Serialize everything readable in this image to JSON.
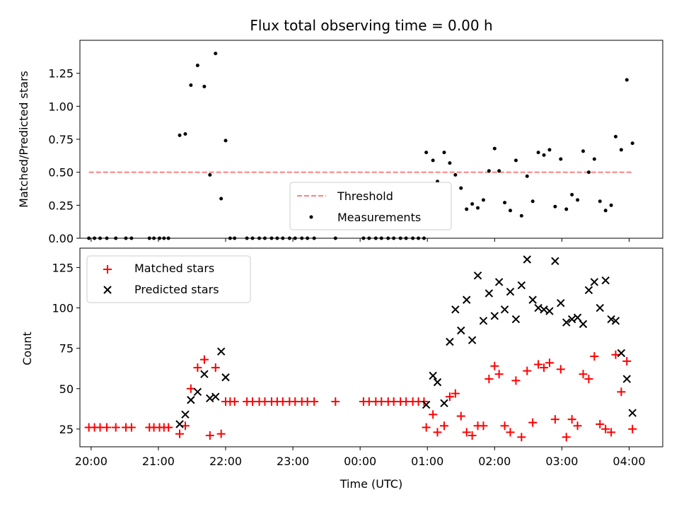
{
  "chart_data": [
    {
      "type": "scatter",
      "title": "Flux total observing time = 0.00 h",
      "xlabel": "",
      "ylabel": "Matched/Predicted stars",
      "xlim": [
        "19:50",
        "04:30"
      ],
      "ylim": [
        0,
        1.5
      ],
      "yticks": [
        "0.00",
        "0.25",
        "0.50",
        "0.75",
        "1.00",
        "1.25"
      ],
      "grid": false,
      "legend_position": "lower center",
      "threshold": {
        "name": "Threshold",
        "value": 0.5,
        "x_start": "19:58",
        "x_end": "04:03",
        "color": "#ff7f7f"
      },
      "series": [
        {
          "name": "Measurements",
          "color": "#000000",
          "points": [
            [
              "19:58",
              0
            ],
            [
              "20:03",
              0
            ],
            [
              "20:08",
              0
            ],
            [
              "20:14",
              0
            ],
            [
              "20:22",
              0
            ],
            [
              "20:31",
              0
            ],
            [
              "20:36",
              0
            ],
            [
              "20:52",
              0
            ],
            [
              "20:56",
              0
            ],
            [
              "21:01",
              0
            ],
            [
              "21:05",
              0
            ],
            [
              "21:09",
              0
            ],
            [
              "21:19",
              0.78
            ],
            [
              "21:24",
              0.79
            ],
            [
              "21:29",
              1.16
            ],
            [
              "21:35",
              1.31
            ],
            [
              "21:41",
              1.15
            ],
            [
              "21:46",
              0.48
            ],
            [
              "21:51",
              1.4
            ],
            [
              "21:56",
              0.3
            ],
            [
              "22:00",
              0.74
            ],
            [
              "22:04",
              0
            ],
            [
              "22:08",
              0
            ],
            [
              "22:19",
              0
            ],
            [
              "22:24",
              0
            ],
            [
              "22:30",
              0
            ],
            [
              "22:35",
              0
            ],
            [
              "22:41",
              0
            ],
            [
              "22:46",
              0
            ],
            [
              "22:51",
              0
            ],
            [
              "22:57",
              0
            ],
            [
              "23:02",
              0
            ],
            [
              "23:08",
              0
            ],
            [
              "23:13",
              0
            ],
            [
              "23:19",
              0
            ],
            [
              "23:38",
              0
            ],
            [
              "00:03",
              0
            ],
            [
              "00:08",
              0
            ],
            [
              "00:14",
              0
            ],
            [
              "00:19",
              0
            ],
            [
              "00:25",
              0
            ],
            [
              "00:30",
              0
            ],
            [
              "00:36",
              0
            ],
            [
              "00:41",
              0
            ],
            [
              "00:47",
              0
            ],
            [
              "00:52",
              0
            ],
            [
              "00:57",
              0
            ],
            [
              "00:59",
              0.65
            ],
            [
              "01:05",
              0.59
            ],
            [
              "01:09",
              0.43
            ],
            [
              "01:15",
              0.65
            ],
            [
              "01:20",
              0.57
            ],
            [
              "01:25",
              0.48
            ],
            [
              "01:30",
              0.38
            ],
            [
              "01:35",
              0.22
            ],
            [
              "01:40",
              0.26
            ],
            [
              "01:45",
              0.23
            ],
            [
              "01:50",
              0.29
            ],
            [
              "01:55",
              0.51
            ],
            [
              "02:00",
              0.68
            ],
            [
              "02:04",
              0.51
            ],
            [
              "02:09",
              0.27
            ],
            [
              "02:14",
              0.21
            ],
            [
              "02:19",
              0.59
            ],
            [
              "02:24",
              0.17
            ],
            [
              "02:29",
              0.47
            ],
            [
              "02:34",
              0.28
            ],
            [
              "02:39",
              0.65
            ],
            [
              "02:44",
              0.63
            ],
            [
              "02:49",
              0.67
            ],
            [
              "02:54",
              0.24
            ],
            [
              "02:59",
              0.6
            ],
            [
              "03:04",
              0.22
            ],
            [
              "03:09",
              0.33
            ],
            [
              "03:14",
              0.29
            ],
            [
              "03:19",
              0.66
            ],
            [
              "03:24",
              0.5
            ],
            [
              "03:29",
              0.6
            ],
            [
              "03:34",
              0.28
            ],
            [
              "03:39",
              0.21
            ],
            [
              "03:44",
              0.25
            ],
            [
              "03:48",
              0.77
            ],
            [
              "03:53",
              0.67
            ],
            [
              "03:58",
              1.2
            ],
            [
              "04:03",
              0.72
            ]
          ]
        }
      ]
    },
    {
      "type": "scatter",
      "title": "",
      "xlabel": "Time (UTC)",
      "ylabel": "Count",
      "xlim": [
        "19:50",
        "04:30"
      ],
      "ylim": [
        14,
        137
      ],
      "yticks": [
        "25",
        "50",
        "75",
        "100",
        "125"
      ],
      "xticks": [
        "20:00",
        "21:00",
        "22:00",
        "23:00",
        "00:00",
        "01:00",
        "02:00",
        "03:00",
        "04:00"
      ],
      "grid": false,
      "legend_position": "upper left",
      "series": [
        {
          "name": "Matched stars",
          "color": "#ff0000",
          "marker": "+",
          "points": [
            [
              "19:58",
              26
            ],
            [
              "20:03",
              26
            ],
            [
              "20:08",
              26
            ],
            [
              "20:14",
              26
            ],
            [
              "20:22",
              26
            ],
            [
              "20:31",
              26
            ],
            [
              "20:36",
              26
            ],
            [
              "20:52",
              26
            ],
            [
              "20:56",
              26
            ],
            [
              "21:01",
              26
            ],
            [
              "21:05",
              26
            ],
            [
              "21:09",
              26
            ],
            [
              "21:19",
              22
            ],
            [
              "21:24",
              27
            ],
            [
              "21:29",
              50
            ],
            [
              "21:35",
              63
            ],
            [
              "21:41",
              68
            ],
            [
              "21:46",
              21
            ],
            [
              "21:51",
              63
            ],
            [
              "21:56",
              22
            ],
            [
              "22:00",
              42
            ],
            [
              "22:04",
              42
            ],
            [
              "22:08",
              42
            ],
            [
              "22:19",
              42
            ],
            [
              "22:24",
              42
            ],
            [
              "22:30",
              42
            ],
            [
              "22:35",
              42
            ],
            [
              "22:41",
              42
            ],
            [
              "22:46",
              42
            ],
            [
              "22:51",
              42
            ],
            [
              "22:57",
              42
            ],
            [
              "23:02",
              42
            ],
            [
              "23:08",
              42
            ],
            [
              "23:13",
              42
            ],
            [
              "23:19",
              42
            ],
            [
              "23:38",
              42
            ],
            [
              "00:03",
              42
            ],
            [
              "00:08",
              42
            ],
            [
              "00:14",
              42
            ],
            [
              "00:19",
              42
            ],
            [
              "00:25",
              42
            ],
            [
              "00:30",
              42
            ],
            [
              "00:36",
              42
            ],
            [
              "00:41",
              42
            ],
            [
              "00:47",
              42
            ],
            [
              "00:52",
              42
            ],
            [
              "00:57",
              42
            ],
            [
              "00:59",
              26
            ],
            [
              "01:05",
              34
            ],
            [
              "01:09",
              23
            ],
            [
              "01:15",
              27
            ],
            [
              "01:20",
              45
            ],
            [
              "01:25",
              47
            ],
            [
              "01:30",
              33
            ],
            [
              "01:35",
              23
            ],
            [
              "01:40",
              21
            ],
            [
              "01:45",
              27
            ],
            [
              "01:50",
              27
            ],
            [
              "01:55",
              56
            ],
            [
              "02:00",
              64
            ],
            [
              "02:04",
              59
            ],
            [
              "02:09",
              27
            ],
            [
              "02:14",
              23
            ],
            [
              "02:19",
              55
            ],
            [
              "02:24",
              20
            ],
            [
              "02:29",
              61
            ],
            [
              "02:34",
              29
            ],
            [
              "02:39",
              65
            ],
            [
              "02:44",
              63
            ],
            [
              "02:49",
              66
            ],
            [
              "02:54",
              31
            ],
            [
              "02:59",
              62
            ],
            [
              "03:04",
              20
            ],
            [
              "03:09",
              31
            ],
            [
              "03:14",
              27
            ],
            [
              "03:19",
              59
            ],
            [
              "03:24",
              56
            ],
            [
              "03:29",
              70
            ],
            [
              "03:34",
              28
            ],
            [
              "03:39",
              25
            ],
            [
              "03:44",
              23
            ],
            [
              "03:48",
              71
            ],
            [
              "03:53",
              48
            ],
            [
              "03:58",
              67
            ],
            [
              "04:03",
              25
            ]
          ]
        },
        {
          "name": "Predicted stars",
          "color": "#000000",
          "marker": "x",
          "points": [
            [
              "21:19",
              28
            ],
            [
              "21:24",
              34
            ],
            [
              "21:29",
              43
            ],
            [
              "21:35",
              48
            ],
            [
              "21:41",
              59
            ],
            [
              "21:46",
              44
            ],
            [
              "21:51",
              45
            ],
            [
              "21:56",
              73
            ],
            [
              "22:00",
              57
            ],
            [
              "00:59",
              40
            ],
            [
              "01:05",
              58
            ],
            [
              "01:09",
              54
            ],
            [
              "01:15",
              41
            ],
            [
              "01:20",
              79
            ],
            [
              "01:25",
              99
            ],
            [
              "01:30",
              86
            ],
            [
              "01:35",
              105
            ],
            [
              "01:40",
              80
            ],
            [
              "01:45",
              120
            ],
            [
              "01:50",
              92
            ],
            [
              "01:55",
              109
            ],
            [
              "02:00",
              95
            ],
            [
              "02:04",
              116
            ],
            [
              "02:09",
              99
            ],
            [
              "02:14",
              110
            ],
            [
              "02:19",
              93
            ],
            [
              "02:24",
              114
            ],
            [
              "02:29",
              130
            ],
            [
              "02:34",
              105
            ],
            [
              "02:39",
              100
            ],
            [
              "02:44",
              99
            ],
            [
              "02:49",
              98
            ],
            [
              "02:54",
              129
            ],
            [
              "02:59",
              103
            ],
            [
              "03:04",
              91
            ],
            [
              "03:09",
              93
            ],
            [
              "03:14",
              94
            ],
            [
              "03:19",
              90
            ],
            [
              "03:24",
              111
            ],
            [
              "03:29",
              116
            ],
            [
              "03:34",
              100
            ],
            [
              "03:39",
              117
            ],
            [
              "03:44",
              93
            ],
            [
              "03:48",
              92
            ],
            [
              "03:53",
              72
            ],
            [
              "03:58",
              56
            ],
            [
              "04:03",
              35
            ]
          ]
        }
      ]
    }
  ]
}
